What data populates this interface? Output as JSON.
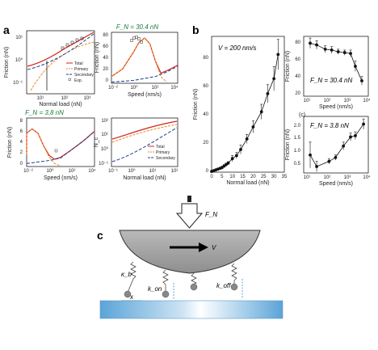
{
  "labels": {
    "a": "a",
    "b": "b",
    "c": "c",
    "panel_c_inner": "(c)"
  },
  "a1": {
    "ylabel": "Friction (nN)",
    "xlabel": "Normal load (nN)",
    "yticks": [
      "10¹",
      "10⁰",
      "10⁻¹"
    ],
    "xticks": [
      "10¹",
      "10²",
      "10³"
    ],
    "legend": [
      "Total",
      "Primary",
      "Secondary",
      "Exp."
    ]
  },
  "a2": {
    "title": "F_N = 30.4 nN",
    "ylabel": "Friction (nN)",
    "xlabel": "Speed (nm/s)",
    "yticks": [
      "80",
      "60",
      "40",
      "20",
      "0"
    ],
    "xticks": [
      "10⁻²",
      "10⁰",
      "10²",
      "10⁴"
    ]
  },
  "a3": {
    "title": "F_N = 3.8 nN",
    "ylabel": "Friction (nN)",
    "xlabel": "Speed (nm/s)",
    "yticks": [
      "8",
      "6",
      "4",
      "2",
      "0"
    ],
    "xticks": [
      "10⁻²",
      "10⁰",
      "10²",
      "10⁴"
    ]
  },
  "a4": {
    "ylabel": "N_c",
    "xlabel": "Normal load (nN)",
    "yticks": [
      "10²",
      "10¹",
      "10⁰",
      "10⁻¹"
    ],
    "xticks": [
      "10⁻¹",
      "10⁰",
      "10¹",
      "10²"
    ],
    "legend": [
      "Total",
      "Primary",
      "Secondary"
    ]
  },
  "b_main": {
    "annotation": "V = 200 nm/s",
    "ylabel": "Friction (nN)",
    "xlabel": "Normal load (nN)",
    "yticks": [
      "80",
      "60",
      "40",
      "20",
      "0"
    ],
    "xticks": [
      "0",
      "5",
      "10",
      "15",
      "20",
      "25",
      "30",
      "35"
    ]
  },
  "b_top": {
    "annotation": "F_N = 30.4 nN",
    "ylabel": "Friction (nN)",
    "xlabel": "Speed (nm/s)",
    "yticks": [
      "80",
      "60",
      "40",
      "20"
    ],
    "xticks": [
      "10¹",
      "10²",
      "10³",
      "10⁴"
    ]
  },
  "b_bot": {
    "annotation": "F_N = 3.8 nN",
    "ylabel": "Friction (nN)",
    "xlabel": "Speed (nm/s)",
    "yticks": [
      "2.0",
      "1.5",
      "1.0",
      "0.5"
    ],
    "xticks": [
      "10¹",
      "10²",
      "10³",
      "10⁴"
    ]
  },
  "schematic": {
    "force": "F_N",
    "velocity": "V",
    "kb": "κ_b",
    "kon": "k_on",
    "koff": "k_off",
    "x": "x"
  },
  "chart_data": [
    {
      "type": "line",
      "id": "b_main",
      "xlim": [
        0,
        35
      ],
      "ylim": [
        0,
        90
      ],
      "x": [
        0,
        1,
        2,
        3,
        4,
        5,
        6,
        7,
        8,
        10,
        12,
        14,
        17,
        20,
        24,
        27,
        30,
        32
      ],
      "y": [
        0.5,
        1,
        1.5,
        2,
        2.5,
        3,
        4,
        5,
        6,
        9,
        11,
        15,
        22,
        30,
        40,
        52,
        62,
        78
      ],
      "err": [
        0.5,
        0.5,
        0.5,
        0.5,
        0.5,
        1,
        1,
        1,
        1,
        2,
        2,
        3,
        3,
        4,
        5,
        6,
        8,
        10
      ]
    },
    {
      "type": "line",
      "id": "b_top",
      "xscale": "log",
      "xlim": [
        10,
        10000
      ],
      "ylim": [
        20,
        90
      ],
      "x": [
        20,
        40,
        100,
        200,
        400,
        800,
        1500,
        2500,
        5000
      ],
      "y": [
        82,
        80,
        75,
        74,
        72,
        71,
        70,
        55,
        38
      ],
      "err": [
        6,
        5,
        4,
        4,
        3,
        3,
        4,
        6,
        5
      ]
    },
    {
      "type": "line",
      "id": "b_bot",
      "xscale": "log",
      "xlim": [
        10,
        10000
      ],
      "ylim": [
        0,
        2.2
      ],
      "x": [
        20,
        40,
        150,
        300,
        700,
        1500,
        2500,
        6000
      ],
      "y": [
        0.7,
        0.25,
        0.45,
        0.6,
        1.05,
        1.4,
        1.45,
        1.9
      ],
      "err": [
        0.5,
        0.2,
        0.1,
        0.1,
        0.15,
        0.15,
        0.15,
        0.2
      ]
    },
    {
      "type": "line",
      "id": "a2",
      "xscale": "log",
      "xlim": [
        0.01,
        10000
      ],
      "ylim": [
        0,
        90
      ],
      "series": [
        {
          "name": "Total",
          "x": [
            0.01,
            0.1,
            1,
            3,
            10,
            30,
            100,
            300,
            1000,
            10000
          ],
          "y": [
            12,
            25,
            55,
            72,
            80,
            70,
            38,
            18,
            22,
            32
          ]
        },
        {
          "name": "Primary",
          "x": [
            0.01,
            0.1,
            1,
            3,
            10,
            30,
            100,
            300,
            1000
          ],
          "y": [
            12,
            25,
            55,
            72,
            80,
            70,
            38,
            12,
            2
          ]
        },
        {
          "name": "Secondary",
          "x": [
            0.01,
            1,
            100,
            1000,
            10000
          ],
          "y": [
            2,
            5,
            12,
            20,
            30
          ]
        }
      ]
    },
    {
      "type": "line",
      "id": "a3",
      "xscale": "log",
      "xlim": [
        0.01,
        10000
      ],
      "ylim": [
        0,
        8
      ],
      "series": [
        {
          "name": "Total",
          "x": [
            0.001,
            0.01,
            0.03,
            0.1,
            0.3,
            1,
            3,
            10,
            100,
            1000,
            10000
          ],
          "y": [
            2,
            5.5,
            6.2,
            5.5,
            3.5,
            1.8,
            1.2,
            1.5,
            2.8,
            4.2,
            5.8
          ]
        },
        {
          "name": "Primary",
          "x": [
            0.001,
            0.01,
            0.03,
            0.1,
            0.3,
            1,
            3,
            10
          ],
          "y": [
            2,
            5.5,
            6.2,
            5.5,
            3.5,
            1.5,
            0.5,
            0.1
          ]
        },
        {
          "name": "Secondary",
          "x": [
            0.01,
            1,
            10,
            100,
            1000,
            10000
          ],
          "y": [
            0.5,
            1,
            1.4,
            2.8,
            4.2,
            5.8
          ]
        }
      ]
    }
  ]
}
